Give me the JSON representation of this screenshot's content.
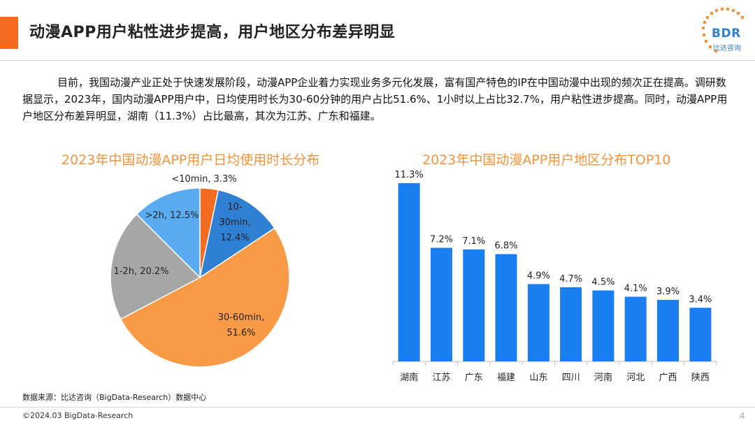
{
  "header": {
    "title": "动漫APP用户粘性进步提高，用户地区分布差异明显",
    "logo_text": "BDR",
    "logo_sub": "比达咨询"
  },
  "intro": {
    "text": "目前，我国动漫产业正处于快速发展阶段，动漫APP企业着力实现业务多元化发展，富有国产特色的IP在中国动漫中出现的频次正在提高。调研数据显示，2023年，国内动漫APP用户中，日均使用时长为30-60分钟的用户占比51.6%、1小时以上占比32.7%，用户粘性进步提高。同时，动漫APP用户地区分布差异明显，湖南（11.3%）占比最高，其次为江苏、广东和福建。"
  },
  "chart_data": [
    {
      "type": "pie",
      "title": "2023年中国动漫APP用户日均使用时长分布",
      "unit": "%",
      "slices": [
        {
          "label": "<10min",
          "value": 3.3,
          "color": "#f36c21"
        },
        {
          "label": "10-30min",
          "value": 12.4,
          "color": "#2f7fd2"
        },
        {
          "label": "30-60min",
          "value": 51.6,
          "color": "#f89a46"
        },
        {
          "label": "1-2h",
          "value": 20.2,
          "color": "#a6a6a6"
        },
        {
          "label": ">2h",
          "value": 12.5,
          "color": "#5aabf0"
        }
      ]
    },
    {
      "type": "bar",
      "title": "2023年中国动漫APP用户地区分布TOP10",
      "unit": "%",
      "categories": [
        "湖南",
        "江苏",
        "广东",
        "福建",
        "山东",
        "四川",
        "河南",
        "河北",
        "广西",
        "陕西"
      ],
      "values": [
        11.3,
        7.2,
        7.1,
        6.8,
        4.9,
        4.7,
        4.5,
        4.1,
        3.9,
        3.4
      ],
      "color": "#1a7ef0",
      "ylim": [
        0,
        11.3
      ],
      "grid": false,
      "legend": "none"
    }
  ],
  "footer": {
    "source": "数据来源：比达咨询（BigData-Research）数据中心",
    "copyright": "©2024.03 BigData-Research",
    "page_number": "4"
  }
}
